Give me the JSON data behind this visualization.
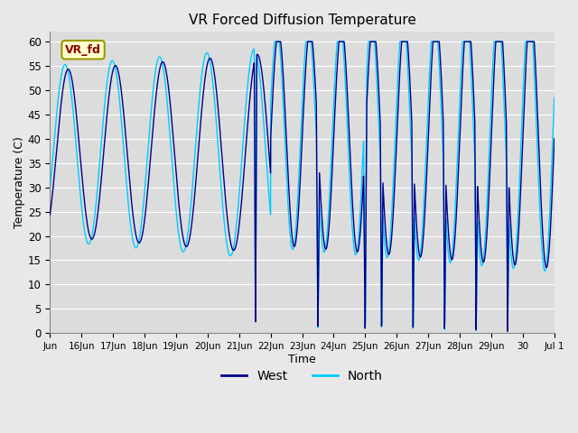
{
  "title": "VR Forced Diffusion Temperature",
  "xlabel": "Time",
  "ylabel": "Temperature (C)",
  "ylim": [
    0,
    62
  ],
  "yticks": [
    0,
    5,
    10,
    15,
    20,
    25,
    30,
    35,
    40,
    45,
    50,
    55,
    60
  ],
  "west_color": "#00008B",
  "north_color": "#00CCFF",
  "bg_color": "#E8E8E8",
  "plot_bg": "#DCDCDC",
  "legend_west": "West",
  "legend_north": "North",
  "annotation_text": "VR_fd",
  "annotation_color": "#8B0000",
  "annotation_bg": "#FFFFCC",
  "annotation_border": "#999900",
  "tick_labels": [
    "Jun",
    "16Jun",
    "17Jun",
    "18Jun",
    "19Jun",
    "20Jun",
    "21Jun",
    "22Jun",
    "23Jun",
    "24Jun",
    "25Jun",
    "26Jun",
    "27Jun",
    "28Jun",
    "29Jun",
    "30",
    "Jul 1"
  ],
  "tick_positions": [
    0,
    1,
    2,
    3,
    4,
    5,
    6,
    7,
    8,
    9,
    10,
    11,
    12,
    13,
    14,
    15,
    16
  ]
}
